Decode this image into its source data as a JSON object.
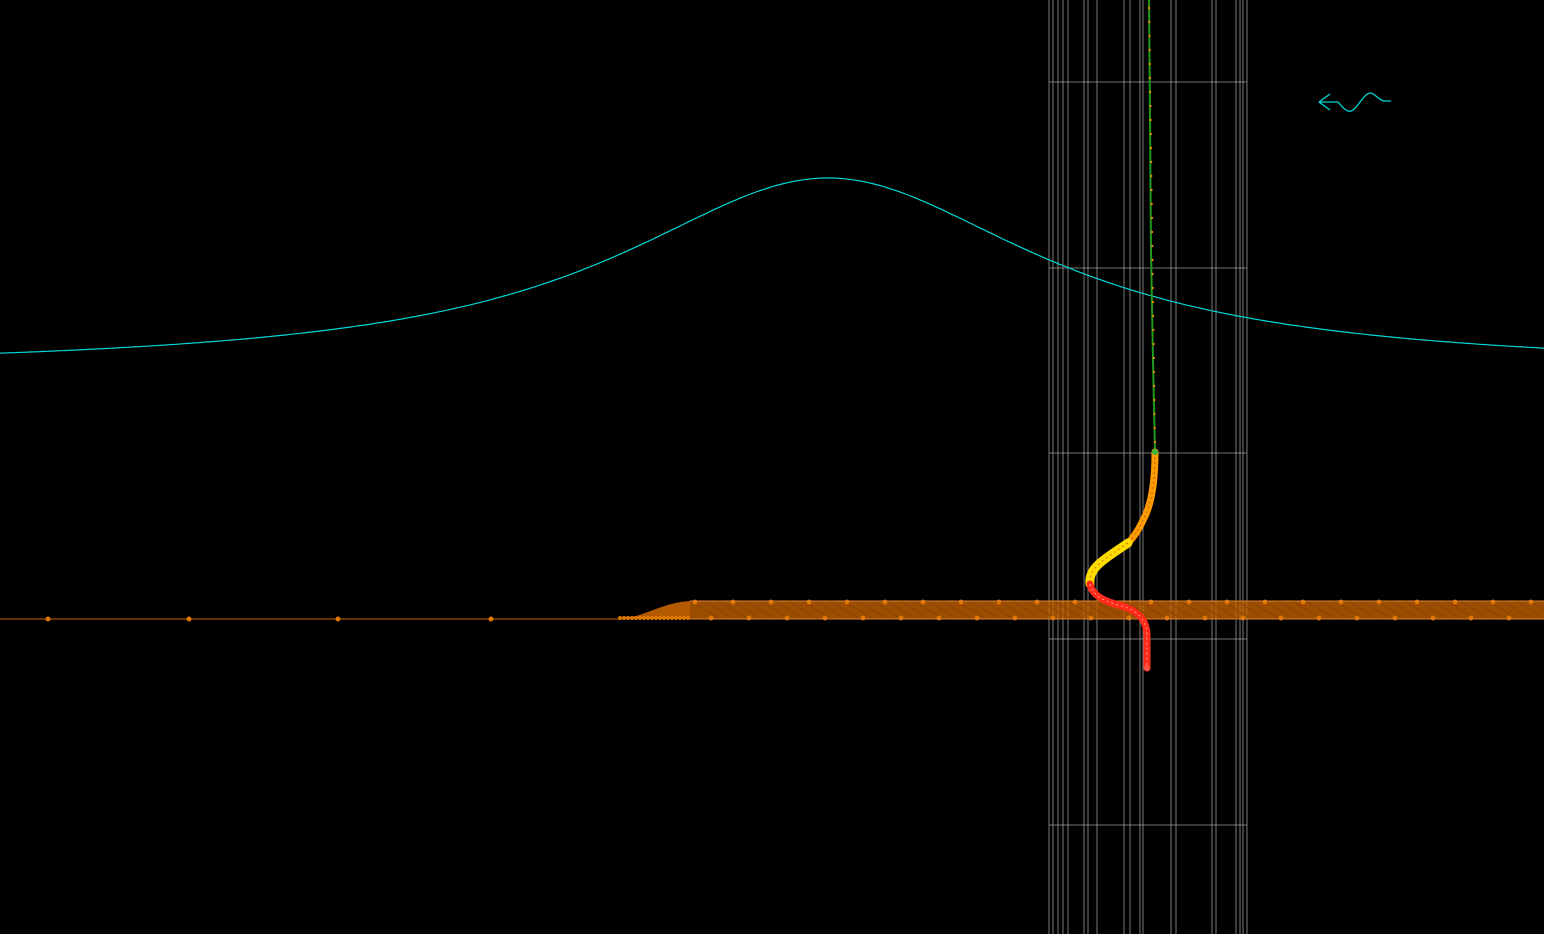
{
  "viewport": {
    "background": "#000000"
  },
  "colors": {
    "grid": "#b4b4b4",
    "curve": "#00d7d7",
    "seabed": "#c86400",
    "seabed_nodes": "#e07800",
    "riser_top": "#1f9a1f",
    "riser_top_nodes": "#ff8c00",
    "riser_mid": "#ff9a00",
    "riser_buoyancy": "#ffdd00",
    "riser_touchdown": "#ff2a1a",
    "wave_icon": "#00d7d7"
  },
  "icons": {
    "wave_direction": "wave-direction-icon"
  }
}
